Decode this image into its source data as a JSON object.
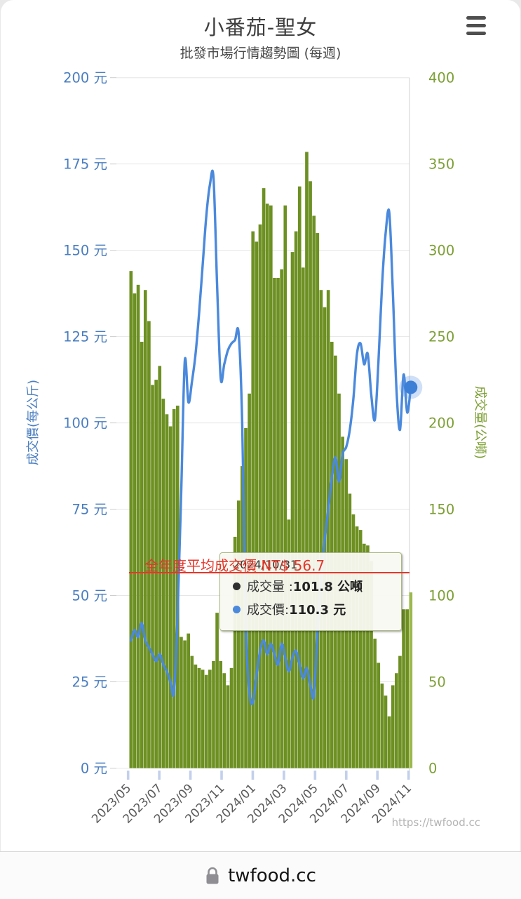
{
  "header": {
    "title": "小番茄-聖女",
    "subtitle": "批發市場行情趨勢圖 (每週)"
  },
  "watermark": "https://twfood.cc",
  "annotation": {
    "text": "全年度平均成交價 NT$ 56.7",
    "value": 56.7
  },
  "tooltip": {
    "date": "2024/10/31",
    "rows": [
      {
        "label": "成交量 : ",
        "value": "101.8 公噸",
        "dot_color": "#2f2f2f"
      },
      {
        "label": "成交價: ",
        "value": "110.3 元",
        "dot_color": "#4a89dc"
      }
    ]
  },
  "browser_bar": {
    "url": "twfood.cc"
  },
  "colors": {
    "bar": "#6d9023",
    "bar_highlight": "#9cb84f",
    "line": "#4a89dc",
    "marker_halo": "rgba(92,148,228,0.30)",
    "marker_core": "#3d7fd6",
    "left_axis": "#4a7ec0",
    "right_axis": "#7d9f35",
    "avg_line": "#e5372a",
    "grid": "#e6e6e6",
    "x_tick": "#c3d0ec",
    "x_label": "#5a5a5a",
    "watermark": "#b3b3b3"
  },
  "chart_data": {
    "type": "combo",
    "title": "小番茄-聖女",
    "subtitle": "批發市場行情趨勢圖 (每週)",
    "x": [
      "2023/05/04",
      "2023/05/11",
      "2023/05/18",
      "2023/05/25",
      "2023/06/01",
      "2023/06/08",
      "2023/06/15",
      "2023/06/22",
      "2023/06/29",
      "2023/07/06",
      "2023/07/13",
      "2023/07/20",
      "2023/07/27",
      "2023/08/03",
      "2023/08/10",
      "2023/08/17",
      "2023/08/24",
      "2023/08/31",
      "2023/09/07",
      "2023/09/14",
      "2023/09/21",
      "2023/09/28",
      "2023/10/05",
      "2023/10/12",
      "2023/10/19",
      "2023/10/26",
      "2023/11/02",
      "2023/11/09",
      "2023/11/16",
      "2023/11/23",
      "2023/11/30",
      "2023/12/07",
      "2023/12/14",
      "2023/12/21",
      "2023/12/28",
      "2024/01/04",
      "2024/01/11",
      "2024/01/18",
      "2024/01/25",
      "2024/02/01",
      "2024/02/08",
      "2024/02/15",
      "2024/02/22",
      "2024/02/29",
      "2024/03/07",
      "2024/03/14",
      "2024/03/21",
      "2024/03/28",
      "2024/04/04",
      "2024/04/11",
      "2024/04/18",
      "2024/04/25",
      "2024/05/02",
      "2024/05/09",
      "2024/05/16",
      "2024/05/23",
      "2024/05/30",
      "2024/06/06",
      "2024/06/13",
      "2024/06/20",
      "2024/06/27",
      "2024/07/04",
      "2024/07/11",
      "2024/07/18",
      "2024/07/25",
      "2024/08/01",
      "2024/08/08",
      "2024/08/15",
      "2024/08/22",
      "2024/08/29",
      "2024/09/05",
      "2024/09/12",
      "2024/09/19",
      "2024/09/26",
      "2024/10/03",
      "2024/10/10",
      "2024/10/17",
      "2024/10/24",
      "2024/10/31"
    ],
    "x_tick_labels": [
      "2023/05",
      "2023/07",
      "2023/09",
      "2023/11",
      "2024/01",
      "2024/03",
      "2024/05",
      "2024/07",
      "2024/09",
      "2024/11"
    ],
    "series": [
      {
        "name": "成交量",
        "type": "bar",
        "unit": "公噸",
        "axis": "right",
        "values": [
          288,
          275,
          280,
          247,
          277,
          259,
          222,
          225,
          233,
          214,
          205,
          198,
          208,
          210,
          76,
          74,
          78,
          65,
          60,
          58,
          57,
          54,
          57,
          62,
          90,
          62,
          55,
          48,
          58,
          134,
          155,
          175,
          197,
          217,
          311,
          305,
          315,
          336,
          327,
          326,
          284,
          284,
          289,
          326,
          144,
          299,
          311,
          337,
          290,
          357,
          340,
          320,
          310,
          277,
          267,
          277,
          247,
          239,
          217,
          192,
          179,
          159,
          147,
          140,
          138,
          130,
          129,
          120,
          75,
          61,
          49,
          42,
          30,
          48,
          55,
          65,
          92,
          92,
          101.8
        ]
      },
      {
        "name": "成交價",
        "type": "line",
        "unit": "元",
        "axis": "left",
        "values": [
          37,
          40,
          38,
          42,
          37,
          35,
          33,
          31,
          33,
          30,
          28,
          25,
          22,
          45,
          80,
          118,
          106,
          112,
          120,
          132,
          146,
          160,
          169,
          171,
          140,
          113,
          117,
          121,
          123,
          124,
          126,
          100,
          42,
          22,
          19,
          27,
          34,
          37,
          33,
          36,
          33,
          30,
          36,
          32,
          28,
          32,
          34,
          30,
          26,
          29,
          24,
          21,
          40,
          55,
          66,
          75,
          84,
          90,
          83,
          91,
          93,
          98,
          107,
          120,
          123,
          117,
          120,
          108,
          101,
          118,
          140,
          155,
          161,
          138,
          110,
          98,
          114,
          103,
          110.3
        ]
      }
    ],
    "y_left": {
      "title": "成交價(每公斤)",
      "min": 0,
      "max": 200,
      "tick_labels": [
        "0 元",
        "25 元",
        "50 元",
        "75 元",
        "100 元",
        "125 元",
        "150 元",
        "175 元",
        "200 元"
      ]
    },
    "y_right": {
      "title": "成交量(公噸)",
      "min": 0,
      "max": 400,
      "tick_labels": [
        "0",
        "50",
        "100",
        "150",
        "200",
        "250",
        "300",
        "350",
        "400"
      ]
    },
    "average_line": {
      "label": "全年度平均成交價 NT$ 56.7",
      "value": 56.7
    },
    "highlighted_point": {
      "date": "2024/10/31",
      "volume": 101.8,
      "price": 110.3
    },
    "legend_position": "none",
    "grid": true
  }
}
